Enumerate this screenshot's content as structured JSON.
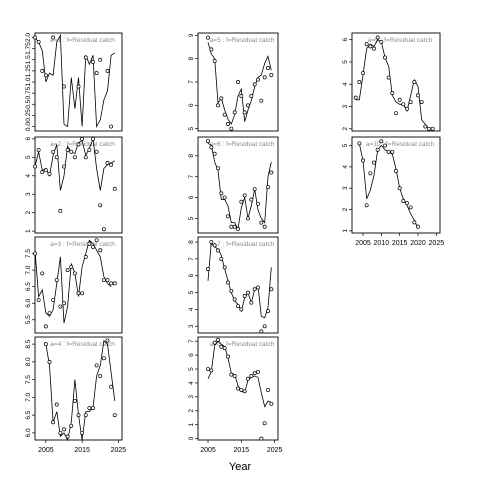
{
  "chart_data": {
    "type": "line",
    "xlabel": "Year",
    "panels": [
      {
        "label": "a=1  :  f=Residual catch",
        "ylim": [
          -0.1,
          2.1
        ],
        "yticks": [
          0.0,
          0.25,
          0.5,
          0.75,
          1.0,
          1.25,
          1.5,
          1.75,
          2.0
        ],
        "yticklabels": [
          "0.0",
          "0.25",
          "0.5",
          "0.75",
          "1.0",
          "1.25",
          "1.5",
          "1.75",
          "2.0"
        ],
        "xticks": [],
        "obs_x": [
          2002,
          2003,
          2004,
          2005,
          2007,
          2010,
          2014,
          2016,
          2018,
          2019,
          2020,
          2022,
          2023
        ],
        "obs_y": [
          2.0,
          1.9,
          1.25,
          1.15,
          2.0,
          0.9,
          0.9,
          1.55,
          1.45,
          1.2,
          1.5,
          1.25,
          0.0
        ],
        "fit_x": [
          2002,
          2003,
          2004,
          2005,
          2006,
          2007,
          2008,
          2009,
          2010,
          2011,
          2012,
          2013,
          2014,
          2015,
          2016,
          2017,
          2018,
          2019,
          2020,
          2021,
          2022,
          2023,
          2024
        ],
        "fit_y": [
          2.0,
          1.9,
          1.7,
          1.0,
          1.2,
          1.15,
          1.9,
          2.05,
          0.05,
          0.0,
          1.1,
          0.4,
          1.1,
          0.0,
          1.6,
          1.4,
          1.6,
          0.0,
          0.15,
          0.6,
          0.8,
          1.6,
          1.65
        ]
      },
      {
        "label": "a=5  :  f=Residual catch",
        "ylim": [
          4.9,
          9.1
        ],
        "yticks": [
          5,
          6,
          7,
          8,
          9
        ],
        "yticklabels": [
          "5",
          "6",
          "7",
          "8",
          "9"
        ],
        "xticks": [],
        "obs_x": [
          2005,
          2006,
          2007,
          2008,
          2009,
          2010,
          2011,
          2012,
          2013,
          2014,
          2015,
          2016,
          2017,
          2018,
          2019,
          2020,
          2021,
          2022,
          2023,
          2024
        ],
        "obs_y": [
          8.9,
          8.4,
          7.9,
          6.0,
          6.3,
          5.6,
          5.2,
          5.0,
          5.7,
          7.0,
          6.4,
          5.7,
          6.0,
          6.4,
          6.9,
          7.1,
          6.2,
          7.2,
          7.6,
          7.3
        ],
        "fit_x": [
          2005,
          2006,
          2007,
          2008,
          2009,
          2010,
          2011,
          2012,
          2013,
          2014,
          2015,
          2016,
          2017,
          2018,
          2019,
          2020,
          2021,
          2022,
          2023,
          2024
        ],
        "fit_y": [
          8.7,
          8.2,
          8.0,
          6.1,
          6.3,
          5.8,
          5.4,
          5.2,
          5.6,
          6.4,
          6.7,
          5.3,
          5.8,
          6.2,
          6.8,
          7.2,
          7.3,
          7.8,
          8.1,
          7.5
        ]
      },
      {
        "label": "a=9  :  f=Residual catch",
        "ylim": [
          1.9,
          6.3
        ],
        "yticks": [
          2,
          3,
          4,
          5,
          6
        ],
        "yticklabels": [
          "2",
          "3",
          "4",
          "5",
          "6"
        ],
        "xticks": [],
        "obs_x": [
          2003,
          2004,
          2005,
          2006,
          2007,
          2008,
          2009,
          2010,
          2011,
          2012,
          2013,
          2014,
          2015,
          2016,
          2017,
          2018,
          2019,
          2020,
          2021,
          2022,
          2023,
          2024
        ],
        "obs_y": [
          3.4,
          4.1,
          4.5,
          5.8,
          5.7,
          5.6,
          6.1,
          5.9,
          5.2,
          4.3,
          3.6,
          2.7,
          3.3,
          3.1,
          2.9,
          3.2,
          4.1,
          3.5,
          3.2,
          2.1,
          2.0,
          2.0
        ],
        "fit_x": [
          2003,
          2004,
          2005,
          2006,
          2007,
          2008,
          2009,
          2010,
          2011,
          2012,
          2013,
          2014,
          2015,
          2016,
          2017,
          2018,
          2019,
          2020,
          2021,
          2022,
          2023
        ],
        "fit_y": [
          3.3,
          3.3,
          4.4,
          5.6,
          5.8,
          5.7,
          6.0,
          5.9,
          5.2,
          4.8,
          3.5,
          3.2,
          3.1,
          3.1,
          2.8,
          3.5,
          4.2,
          3.9,
          2.4,
          2.2,
          2.0
        ]
      },
      {
        "label": "a=2  :  f=Residual catch",
        "ylim": [
          0.9,
          6.1
        ],
        "yticks": [
          1,
          2,
          3,
          4,
          5,
          6
        ],
        "yticklabels": [
          "1",
          "2",
          "3",
          "4",
          "5",
          "6"
        ],
        "xticks": [],
        "obs_x": [
          2002,
          2003,
          2004,
          2005,
          2006,
          2007,
          2008,
          2009,
          2010,
          2011,
          2012,
          2013,
          2014,
          2015,
          2016,
          2017,
          2018,
          2019,
          2020,
          2021,
          2022,
          2023,
          2024
        ],
        "obs_y": [
          4.5,
          5.4,
          4.2,
          4.3,
          4.1,
          5.3,
          5.0,
          2.1,
          4.5,
          5.4,
          5.3,
          5.0,
          5.7,
          6.0,
          5.0,
          5.4,
          6.0,
          5.3,
          2.4,
          1.1,
          4.7,
          4.6,
          3.3
        ],
        "fit_x": [
          2002,
          2003,
          2004,
          2005,
          2006,
          2007,
          2008,
          2009,
          2010,
          2011,
          2012,
          2013,
          2014,
          2015,
          2016,
          2017,
          2018,
          2019,
          2020,
          2021,
          2022,
          2023,
          2024
        ],
        "fit_y": [
          4.5,
          5.3,
          4.3,
          4.4,
          4.0,
          5.1,
          5.7,
          3.2,
          4.0,
          5.6,
          5.3,
          5.2,
          5.8,
          5.9,
          5.1,
          5.5,
          6.0,
          4.4,
          3.2,
          4.4,
          4.6,
          4.7,
          4.8
        ]
      },
      {
        "label": "a=6  :  f=Residual catch",
        "ylim": [
          4.3,
          8.9
        ],
        "yticks": [
          5,
          6,
          7,
          8
        ],
        "yticklabels": [
          "5",
          "6",
          "7",
          "8"
        ],
        "xticks": [],
        "obs_x": [
          2005,
          2006,
          2007,
          2008,
          2009,
          2010,
          2011,
          2012,
          2013,
          2014,
          2015,
          2016,
          2017,
          2018,
          2019,
          2020,
          2021,
          2022,
          2023,
          2024
        ],
        "obs_y": [
          8.7,
          8.4,
          8.1,
          7.4,
          6.2,
          6.0,
          5.1,
          4.6,
          4.6,
          4.5,
          5.8,
          6.1,
          5.0,
          5.9,
          6.4,
          5.7,
          4.8,
          4.6,
          6.5,
          7.2
        ],
        "fit_x": [
          2005,
          2006,
          2007,
          2008,
          2009,
          2010,
          2011,
          2012,
          2013,
          2014,
          2015,
          2016,
          2017,
          2018,
          2019,
          2020,
          2021,
          2022,
          2023,
          2024
        ],
        "fit_y": [
          8.6,
          8.5,
          7.7,
          7.3,
          5.9,
          5.9,
          5.6,
          4.8,
          4.8,
          4.5,
          5.5,
          6.0,
          5.0,
          5.6,
          6.4,
          5.4,
          5.0,
          4.8,
          7.0,
          7.7
        ]
      },
      {
        "label": "a=10  :  f=Residual catch",
        "ylim": [
          0.9,
          5.4
        ],
        "yticks": [
          1,
          2,
          3,
          4,
          5
        ],
        "yticklabels": [
          "1",
          "2",
          "3",
          "4",
          "5"
        ],
        "xticks": [
          2005,
          2010,
          2015,
          2020,
          2025
        ],
        "xticklabels": [
          "2005",
          "2010",
          "2015",
          "2020",
          "2025"
        ],
        "obs_x": [
          2004,
          2005,
          2006,
          2007,
          2008,
          2009,
          2010,
          2011,
          2012,
          2013,
          2014,
          2015,
          2016,
          2017,
          2018,
          2019,
          2020
        ],
        "obs_y": [
          5.1,
          4.3,
          2.2,
          3.7,
          4.2,
          4.8,
          5.2,
          5.0,
          4.7,
          4.7,
          3.8,
          3.0,
          2.4,
          2.3,
          2.1,
          1.4,
          1.2
        ],
        "fit_x": [
          2004,
          2005,
          2006,
          2007,
          2008,
          2009,
          2010,
          2011,
          2012,
          2013,
          2014,
          2015,
          2016,
          2017,
          2018,
          2019,
          2020
        ],
        "fit_y": [
          5.1,
          4.3,
          2.5,
          2.9,
          3.6,
          4.8,
          5.0,
          4.8,
          4.7,
          4.6,
          3.9,
          3.0,
          2.5,
          2.2,
          1.8,
          1.5,
          1.1
        ]
      },
      {
        "label": "a=3  :  f=Residual catch",
        "ylim": [
          5.1,
          8.0
        ],
        "yticks": [
          5.5,
          6.0,
          6.5,
          7.0,
          7.5
        ],
        "yticklabels": [
          "5.5",
          "6.0",
          "6.5",
          "7.0",
          "7.5"
        ],
        "xticks": [],
        "obs_x": [
          2002,
          2003,
          2004,
          2005,
          2006,
          2007,
          2008,
          2009,
          2010,
          2011,
          2012,
          2013,
          2014,
          2015,
          2016,
          2017,
          2018,
          2019,
          2020,
          2021,
          2022,
          2023,
          2024
        ],
        "obs_y": [
          7.5,
          6.1,
          6.9,
          5.3,
          5.7,
          6.1,
          6.7,
          5.9,
          6.0,
          7.0,
          7.1,
          6.9,
          6.3,
          6.3,
          7.4,
          7.8,
          7.7,
          7.9,
          7.6,
          6.7,
          6.7,
          6.6,
          6.6
        ],
        "fit_x": [
          2002,
          2003,
          2004,
          2005,
          2006,
          2007,
          2008,
          2009,
          2010,
          2011,
          2012,
          2013,
          2014,
          2015,
          2016,
          2017,
          2018,
          2019,
          2020,
          2021,
          2022,
          2023
        ],
        "fit_y": [
          7.6,
          6.2,
          6.4,
          5.7,
          5.6,
          5.8,
          6.6,
          7.4,
          5.4,
          5.9,
          7.2,
          6.9,
          6.2,
          7.1,
          7.5,
          7.9,
          7.8,
          7.6,
          7.4,
          6.8,
          6.6,
          6.5
        ]
      },
      {
        "label": "a=7  :  f=Residual catch",
        "ylim": [
          2.6,
          8.3
        ],
        "yticks": [
          3,
          4,
          5,
          6,
          7,
          8
        ],
        "yticklabels": [
          "3",
          "4",
          "5",
          "6",
          "7",
          "8"
        ],
        "xticks": [],
        "obs_x": [
          2005,
          2006,
          2007,
          2008,
          2009,
          2010,
          2011,
          2012,
          2013,
          2014,
          2015,
          2016,
          2017,
          2018,
          2019,
          2020,
          2021,
          2022,
          2023,
          2024
        ],
        "obs_y": [
          6.4,
          8.0,
          7.8,
          7.5,
          7.0,
          6.5,
          5.6,
          5.1,
          4.6,
          4.2,
          4.0,
          4.8,
          5.0,
          4.4,
          5.2,
          5.3,
          2.7,
          3.0,
          3.9,
          5.2
        ],
        "fit_x": [
          2005,
          2006,
          2007,
          2008,
          2009,
          2010,
          2011,
          2012,
          2013,
          2014,
          2015,
          2016,
          2017,
          2018,
          2019,
          2020,
          2021,
          2022,
          2023,
          2024
        ],
        "fit_y": [
          5.7,
          8.0,
          7.7,
          7.6,
          7.2,
          6.4,
          5.7,
          5.0,
          4.5,
          4.3,
          3.9,
          4.7,
          5.0,
          4.4,
          5.2,
          5.4,
          3.6,
          3.5,
          4.1,
          6.5
        ]
      },
      {
        "label": "a=4  :  f=Residual catch",
        "ylim": [
          5.8,
          8.7
        ],
        "yticks": [
          6.0,
          6.5,
          7.0,
          7.5,
          8.0,
          8.5
        ],
        "yticklabels": [
          "6.0",
          "6.5",
          "7.0",
          "7.5",
          "8.0",
          "8.5"
        ],
        "xticks": [
          2005,
          2015,
          2025
        ],
        "xticklabels": [
          "2005",
          "2015",
          "2025"
        ],
        "obs_x": [
          2005,
          2006,
          2007,
          2008,
          2009,
          2010,
          2011,
          2012,
          2013,
          2014,
          2015,
          2016,
          2017,
          2018,
          2019,
          2020,
          2021,
          2022,
          2023,
          2024
        ],
        "obs_y": [
          8.5,
          8.0,
          6.3,
          6.8,
          6.0,
          6.1,
          5.9,
          6.2,
          6.9,
          6.5,
          6.0,
          6.5,
          6.7,
          6.7,
          7.9,
          7.6,
          8.1,
          8.6,
          7.3,
          6.5
        ],
        "fit_x": [
          2005,
          2006,
          2007,
          2008,
          2009,
          2010,
          2011,
          2012,
          2013,
          2014,
          2015,
          2016,
          2017,
          2018,
          2019,
          2020,
          2021,
          2022,
          2023,
          2024
        ],
        "fit_y": [
          8.5,
          7.9,
          6.3,
          6.6,
          5.9,
          6.0,
          5.8,
          6.3,
          7.5,
          6.5,
          5.8,
          6.6,
          6.6,
          6.7,
          7.6,
          7.9,
          8.6,
          8.5,
          7.7,
          6.9
        ]
      },
      {
        "label": "a=8  :  f=Residual catch",
        "ylim": [
          -0.1,
          7.3
        ],
        "yticks": [
          0,
          1,
          2,
          3,
          4,
          5,
          6,
          7
        ],
        "yticklabels": [
          "0",
          "1",
          "2",
          "3",
          "4",
          "5",
          "6",
          "7"
        ],
        "xticks": [
          2005,
          2015,
          2025
        ],
        "xticklabels": [
          "2005",
          "2015",
          "2025"
        ],
        "obs_x": [
          2005,
          2006,
          2007,
          2008,
          2009,
          2010,
          2011,
          2012,
          2013,
          2014,
          2015,
          2016,
          2017,
          2018,
          2019,
          2020,
          2021,
          2022,
          2023,
          2024
        ],
        "obs_y": [
          5.0,
          4.9,
          6.9,
          7.1,
          6.6,
          6.5,
          5.9,
          4.6,
          4.5,
          3.6,
          3.5,
          3.4,
          4.3,
          4.5,
          4.7,
          4.8,
          0.0,
          1.1,
          3.5,
          2.5
        ],
        "fit_x": [
          2005,
          2006,
          2007,
          2008,
          2009,
          2010,
          2011,
          2012,
          2013,
          2014,
          2015,
          2016,
          2017,
          2018,
          2019,
          2020,
          2021,
          2022,
          2023,
          2024
        ],
        "fit_y": [
          4.3,
          4.8,
          6.7,
          7.0,
          6.8,
          6.6,
          5.8,
          4.7,
          4.6,
          3.8,
          3.4,
          3.3,
          4.2,
          4.4,
          4.5,
          4.4,
          3.3,
          2.3,
          2.7,
          2.6
        ]
      }
    ]
  }
}
